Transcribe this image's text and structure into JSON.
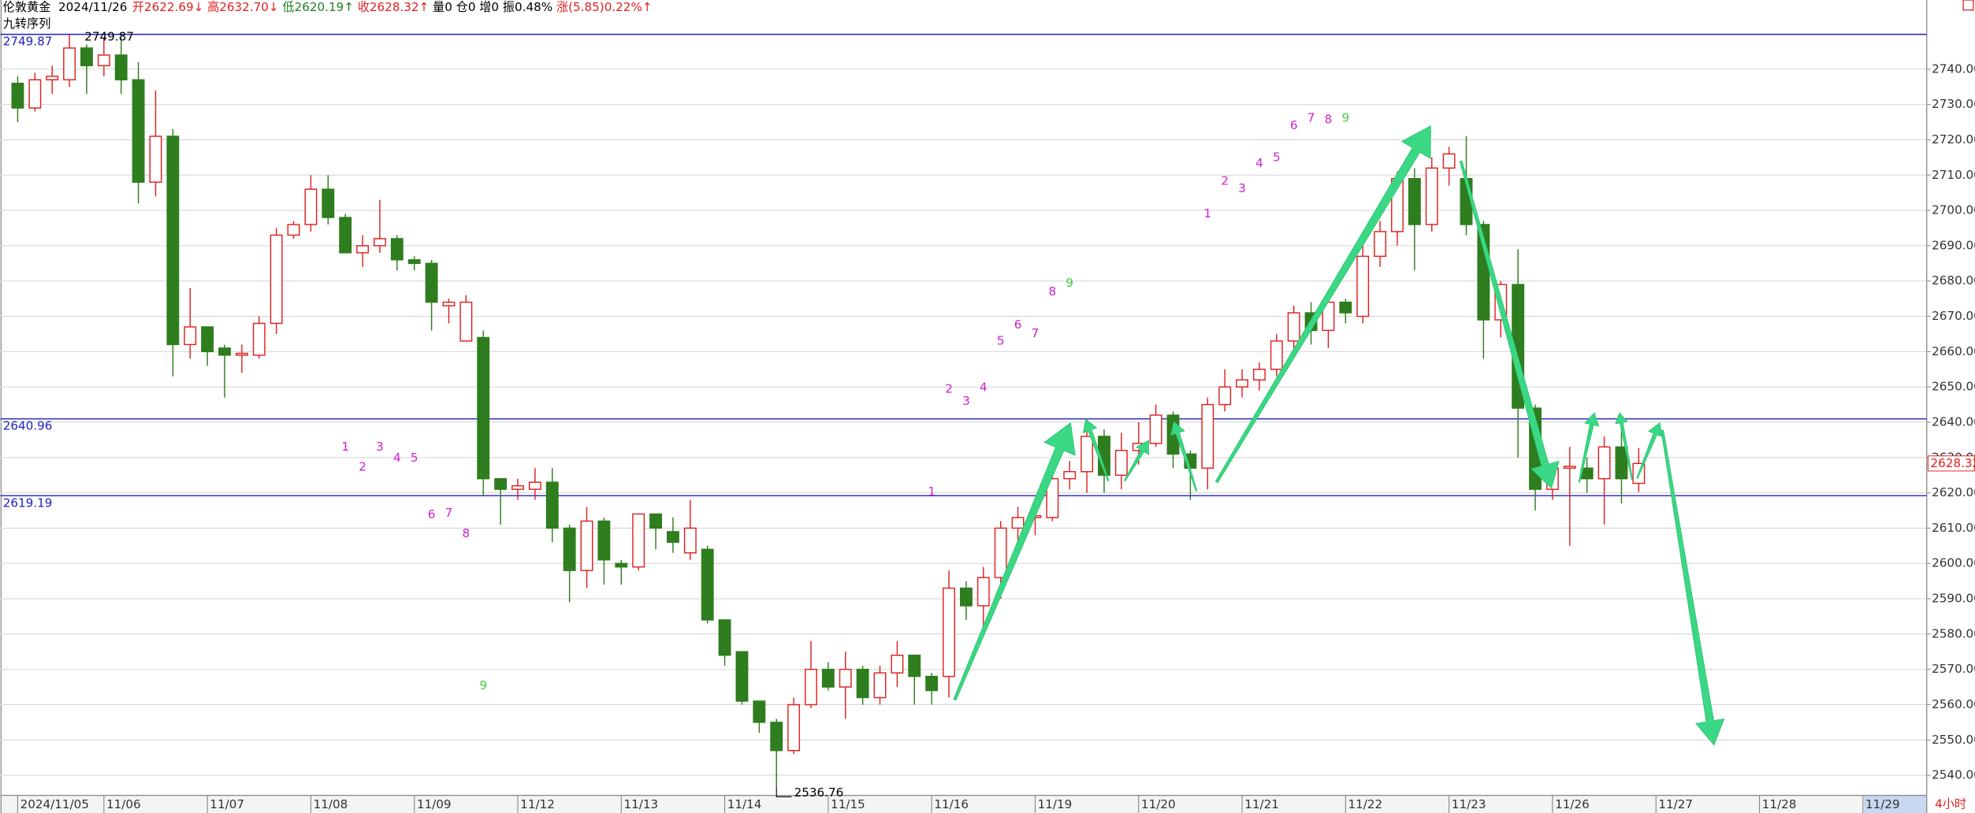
{
  "header": {
    "instrument": "伦敦黄金",
    "date": "2024/11/26",
    "items": [
      {
        "text": "开2622.69↓",
        "color": "#e02020"
      },
      {
        "text": "高2632.70↓",
        "color": "#e02020"
      },
      {
        "text": "低2620.19↑",
        "color": "#208020"
      },
      {
        "text": "收2628.32↑",
        "color": "#e02020"
      },
      {
        "text": "量0",
        "color": "#000000"
      },
      {
        "text": "仓0",
        "color": "#000000"
      },
      {
        "text": "增0",
        "color": "#000000"
      },
      {
        "text": "振0.48%",
        "color": "#000000"
      },
      {
        "text": "涨(5.85)0.22%↑",
        "color": "#e02020"
      }
    ],
    "indicator": "九转序列",
    "period": "4小时"
  },
  "chart_data": {
    "type": "candlestick",
    "up_color": "#e02020",
    "down_color": "#2e7d1e",
    "open": [
      2736,
      2729,
      2737,
      2737,
      2746,
      2741,
      2744,
      2737,
      2708,
      2721,
      2662,
      2667,
      2661,
      2659,
      2659,
      2668,
      2693,
      2696,
      2706,
      2698,
      2688,
      2690,
      2692,
      2686,
      2685,
      2673,
      2663,
      2664,
      2624,
      2621,
      2621,
      2623,
      2610,
      2598,
      2612,
      2600,
      2599,
      2614,
      2609,
      2603,
      2604,
      2584,
      2575,
      2561,
      2555,
      2547,
      2560,
      2570,
      2565,
      2570,
      2562,
      2569,
      2574,
      2568,
      2568,
      2593,
      2588,
      2596,
      2610,
      2613,
      2613,
      2624,
      2626,
      2636,
      2625,
      2632,
      2634,
      2642,
      2631,
      2627,
      2645,
      2650,
      2652,
      2655,
      2663,
      2671,
      2666,
      2674,
      2670,
      2687,
      2694,
      2709,
      2696,
      2712,
      2709,
      2696,
      2669,
      2679,
      2644,
      2621,
      2627,
      2627,
      2624,
      2633,
      2622.69
    ],
    "high": [
      2738,
      2739,
      2741,
      2749.87,
      2747,
      2749,
      2749,
      2742,
      2734,
      2723,
      2678,
      2666,
      2662,
      2662,
      2670,
      2695,
      2697,
      2710,
      2710,
      2699,
      2693,
      2703,
      2693,
      2687,
      2686,
      2675,
      2676,
      2666,
      2624,
      2624,
      2627,
      2627,
      2611,
      2616,
      2613,
      2601,
      2614,
      2614,
      2613,
      2618,
      2605,
      2584,
      2575,
      2561,
      2556,
      2562,
      2578,
      2572,
      2575,
      2571,
      2571,
      2578,
      2574,
      2569,
      2598,
      2595,
      2599,
      2612,
      2616,
      2616,
      2626,
      2629,
      2641,
      2638,
      2637,
      2640,
      2645,
      2643,
      2632,
      2647,
      2655,
      2655,
      2657,
      2665,
      2673,
      2674,
      2676,
      2675,
      2690,
      2697,
      2711,
      2712,
      2715,
      2718,
      2721,
      2697,
      2680,
      2689,
      2645,
      2628,
      2633,
      2630,
      2636,
      2642,
      2632.7
    ],
    "low": [
      2725,
      2728,
      2733,
      2735,
      2733,
      2738,
      2733,
      2702,
      2704,
      2653,
      2658,
      2656,
      2647,
      2654,
      2658,
      2665,
      2692,
      2694,
      2696,
      2688,
      2684,
      2688,
      2683,
      2683,
      2666,
      2668,
      2663,
      2619,
      2611,
      2618,
      2618,
      2606,
      2589,
      2593,
      2594,
      2594,
      2598,
      2604,
      2603,
      2601,
      2583,
      2571,
      2560,
      2552,
      2536.76,
      2546,
      2559,
      2564,
      2556,
      2560,
      2560,
      2565,
      2560,
      2560,
      2562,
      2584,
      2582,
      2590,
      2605,
      2608,
      2612,
      2621,
      2620,
      2620,
      2621,
      2628,
      2633,
      2627,
      2618,
      2621,
      2643,
      2647,
      2649,
      2653,
      2660,
      2662,
      2661,
      2668,
      2668,
      2684,
      2690,
      2683,
      2694,
      2707,
      2693,
      2658,
      2664,
      2630,
      2615,
      2618,
      2605,
      2620,
      2611,
      2617,
      2620.19
    ],
    "close": [
      2729,
      2737,
      2738,
      2746,
      2741,
      2744,
      2737,
      2708,
      2721,
      2662,
      2667,
      2660,
      2659,
      2659.5,
      2668,
      2693,
      2696,
      2706,
      2698,
      2688,
      2690,
      2692,
      2686,
      2685,
      2674,
      2674,
      2674,
      2624,
      2621,
      2622,
      2623,
      2610,
      2598,
      2612,
      2601,
      2599,
      2614,
      2610,
      2606,
      2610,
      2584,
      2574,
      2561,
      2555,
      2547,
      2560,
      2570,
      2565,
      2570,
      2562,
      2569,
      2574,
      2568,
      2564,
      2593,
      2588,
      2596,
      2610,
      2613,
      2613.5,
      2624,
      2626,
      2636,
      2625,
      2632,
      2634,
      2642,
      2631,
      2627,
      2645,
      2650,
      2652,
      2655,
      2663,
      2671,
      2666,
      2674,
      2671,
      2687,
      2694,
      2709,
      2696,
      2712,
      2716,
      2696,
      2669,
      2679,
      2644,
      2621,
      2627,
      2627.5,
      2624,
      2633,
      2624,
      2628.32
    ],
    "xlim": [
      -1,
      110.7
    ],
    "xticks": [
      {
        "value": 0,
        "label": "2024/11/05"
      },
      {
        "value": 5,
        "label": "11/06"
      },
      {
        "value": 11,
        "label": "11/07"
      },
      {
        "value": 17,
        "label": "11/08"
      },
      {
        "value": 23,
        "label": "11/09"
      },
      {
        "value": 29,
        "label": "11/12"
      },
      {
        "value": 35,
        "label": "11/13"
      },
      {
        "value": 41,
        "label": "11/14"
      },
      {
        "value": 47,
        "label": "11/15"
      },
      {
        "value": 53,
        "label": "11/16"
      },
      {
        "value": 59,
        "label": "11/19"
      },
      {
        "value": 65,
        "label": "11/20"
      },
      {
        "value": 71,
        "label": "11/21"
      },
      {
        "value": 77,
        "label": "11/22"
      },
      {
        "value": 83,
        "label": "11/23"
      },
      {
        "value": 89,
        "label": "11/26"
      },
      {
        "value": 95,
        "label": "11/27"
      },
      {
        "value": 101,
        "label": "11/28"
      },
      {
        "value": 107,
        "label": "11/29"
      }
    ],
    "ylim": [
      2534.3,
      2759.6
    ],
    "yticks": [
      {
        "value": 2540,
        "label": "2540.00"
      },
      {
        "value": 2550,
        "label": "2550.00"
      },
      {
        "value": 2560,
        "label": "2560.00"
      },
      {
        "value": 2570,
        "label": "2570.00"
      },
      {
        "value": 2580,
        "label": "2580.00"
      },
      {
        "value": 2590,
        "label": "2590.00"
      },
      {
        "value": 2600,
        "label": "2600.00"
      },
      {
        "value": 2610,
        "label": "2610.00"
      },
      {
        "value": 2620,
        "label": "2620.00"
      },
      {
        "value": 2630,
        "label": "2630.00"
      },
      {
        "value": 2640,
        "label": "2640.00"
      },
      {
        "value": 2650,
        "label": "2650.00"
      },
      {
        "value": 2660,
        "label": "2660.00"
      },
      {
        "value": 2670,
        "label": "2670.00"
      },
      {
        "value": 2680,
        "label": "2680.00"
      },
      {
        "value": 2690,
        "label": "2690.00"
      },
      {
        "value": 2700,
        "label": "2700.00"
      },
      {
        "value": 2710,
        "label": "2710.00"
      },
      {
        "value": 2720,
        "label": "2720.00"
      },
      {
        "value": 2730,
        "label": "2730.00"
      },
      {
        "value": 2740,
        "label": "2740.00"
      }
    ],
    "grid": true,
    "hlines": [
      2749.87,
      2640.96,
      2619.19
    ],
    "hline_color": "#2020c0",
    "sequence_labels": [
      {
        "text": "1",
        "index": 19,
        "price": 2633.0,
        "color": "#d020d0"
      },
      {
        "text": "2",
        "index": 20,
        "price": 2627.3,
        "color": "#d020d0"
      },
      {
        "text": "3",
        "index": 21,
        "price": 2633.0,
        "color": "#d020d0"
      },
      {
        "text": "4",
        "index": 22,
        "price": 2629.8,
        "color": "#d020d0"
      },
      {
        "text": "5",
        "index": 23,
        "price": 2629.8,
        "color": "#d020d0"
      },
      {
        "text": "6",
        "index": 24,
        "price": 2613.8,
        "color": "#d020d0"
      },
      {
        "text": "7",
        "index": 25,
        "price": 2614.2,
        "color": "#d020d0"
      },
      {
        "text": "8",
        "index": 26,
        "price": 2608.4,
        "color": "#d020d0"
      },
      {
        "text": "9",
        "index": 27,
        "price": 2565.3,
        "color": "#40d040"
      },
      {
        "text": "1",
        "index": 53,
        "price": 2620.2,
        "color": "#d020d0"
      },
      {
        "text": "2",
        "index": 54,
        "price": 2649.4,
        "color": "#d020d0"
      },
      {
        "text": "3",
        "index": 55,
        "price": 2645.9,
        "color": "#d020d0"
      },
      {
        "text": "4",
        "index": 56,
        "price": 2649.8,
        "color": "#d020d0"
      },
      {
        "text": "5",
        "index": 57,
        "price": 2663.0,
        "color": "#d020d0"
      },
      {
        "text": "6",
        "index": 58,
        "price": 2667.6,
        "color": "#d020d0"
      },
      {
        "text": "7",
        "index": 59,
        "price": 2665.1,
        "color": "#d020d0"
      },
      {
        "text": "8",
        "index": 60,
        "price": 2676.9,
        "color": "#d020d0"
      },
      {
        "text": "9",
        "index": 61,
        "price": 2679.4,
        "color": "#40d040"
      },
      {
        "text": "1",
        "index": 69,
        "price": 2699.0,
        "color": "#d020d0"
      },
      {
        "text": "2",
        "index": 70,
        "price": 2708.3,
        "color": "#d020d0"
      },
      {
        "text": "3",
        "index": 71,
        "price": 2706.1,
        "color": "#d020d0"
      },
      {
        "text": "4",
        "index": 72,
        "price": 2713.3,
        "color": "#d020d0"
      },
      {
        "text": "5",
        "index": 73,
        "price": 2715.0,
        "color": "#d020d0"
      },
      {
        "text": "6",
        "index": 74,
        "price": 2724.0,
        "color": "#d020d0"
      },
      {
        "text": "7",
        "index": 75,
        "price": 2726.1,
        "color": "#d020d0"
      },
      {
        "text": "8",
        "index": 76,
        "price": 2725.7,
        "color": "#d020d0"
      },
      {
        "text": "9",
        "index": 77,
        "price": 2726.1,
        "color": "#40d040"
      }
    ]
  }
}
